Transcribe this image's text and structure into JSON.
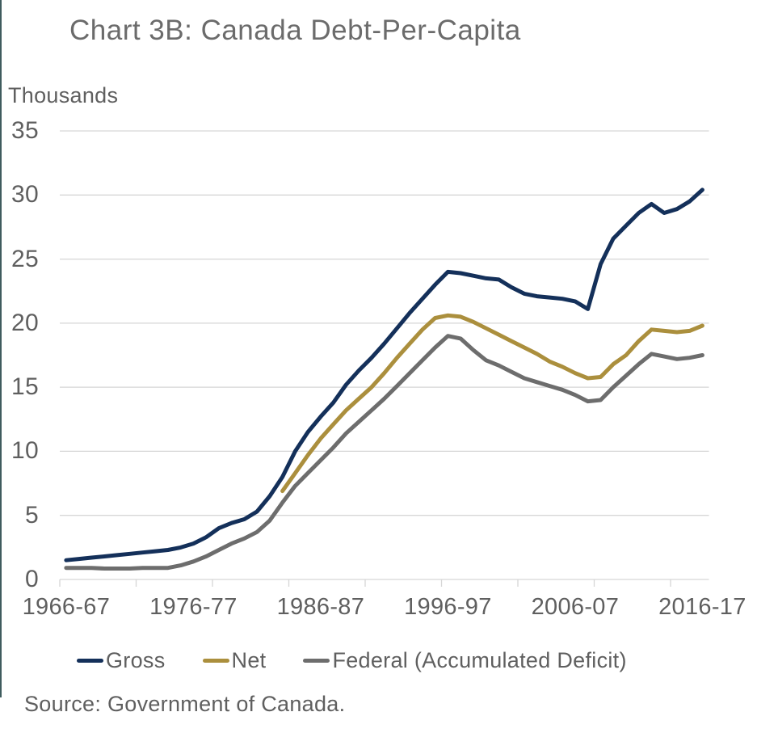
{
  "title": "Chart 3B: Canada Debt-Per-Capita",
  "y_axis": {
    "units_label": "Thousands",
    "ticks": [
      "35",
      "30",
      "25",
      "20",
      "15",
      "10",
      "5",
      "0"
    ]
  },
  "x_axis": {
    "labels": [
      "1966-67",
      "1976-77",
      "1986-87",
      "1996-97",
      "2006-07",
      "2016-17"
    ]
  },
  "legend": [
    {
      "label": "Gross",
      "color": "#14305a"
    },
    {
      "label": "Net",
      "color": "#ab8f3d"
    },
    {
      "label": "Federal (Accumulated Deficit)",
      "color": "#6d6d6d"
    }
  ],
  "source": "Source: Government of Canada.",
  "colors": {
    "gross_line": "#14305a",
    "net_line": "#ab8f3d",
    "federal_line": "#6d6d6d",
    "gridline": "#d6d6d6",
    "text": "#5f5f5f",
    "accent_border": "#3f5c5e"
  },
  "chart_data": {
    "type": "line",
    "title": "Chart 3B: Canada Debt-Per-Capita",
    "xlabel": "",
    "ylabel": "Thousands",
    "ylim": [
      0,
      35
    ],
    "y_tick_step": 5,
    "grid": true,
    "legend_position": "bottom",
    "x_start_year": 1966,
    "x_end_year": 2016,
    "x_tick_labels": [
      "1966-67",
      "1976-77",
      "1986-87",
      "1996-97",
      "2006-07",
      "2016-17"
    ],
    "x_label_every_years": 10,
    "x_tickmark_every_years": 6,
    "units": "thousands of dollars per capita",
    "series": [
      {
        "name": "Gross",
        "color": "#14305a",
        "start_year": 1966,
        "values": [
          1.5,
          1.6,
          1.7,
          1.8,
          1.9,
          2.0,
          2.1,
          2.2,
          2.3,
          2.5,
          2.8,
          3.3,
          4.0,
          4.4,
          4.7,
          5.3,
          6.5,
          8.0,
          10.0,
          11.5,
          12.7,
          13.8,
          15.2,
          16.3,
          17.3,
          18.4,
          19.6,
          20.8,
          21.9,
          23.0,
          24.0,
          23.9,
          23.7,
          23.5,
          23.4,
          22.8,
          22.3,
          22.1,
          22.0,
          21.9,
          21.7,
          21.1,
          24.6,
          26.6,
          27.6,
          28.6,
          29.3,
          28.6,
          28.9,
          29.5,
          30.4
        ]
      },
      {
        "name": "Net",
        "color": "#ab8f3d",
        "start_year": 1983,
        "values": [
          6.9,
          8.3,
          9.7,
          11.0,
          12.1,
          13.2,
          14.1,
          15.0,
          16.1,
          17.3,
          18.4,
          19.5,
          20.4,
          20.6,
          20.5,
          20.1,
          19.6,
          19.1,
          18.6,
          18.1,
          17.6,
          17.0,
          16.6,
          16.1,
          15.7,
          15.8,
          16.8,
          17.5,
          18.6,
          19.5,
          19.4,
          19.3,
          19.4,
          19.8
        ]
      },
      {
        "name": "Federal (Accumulated Deficit)",
        "color": "#6d6d6d",
        "start_year": 1966,
        "values": [
          0.9,
          0.9,
          0.9,
          0.85,
          0.85,
          0.85,
          0.9,
          0.9,
          0.9,
          1.1,
          1.4,
          1.8,
          2.3,
          2.8,
          3.2,
          3.7,
          4.6,
          6.0,
          7.3,
          8.3,
          9.3,
          10.3,
          11.4,
          12.3,
          13.2,
          14.1,
          15.1,
          16.1,
          17.1,
          18.1,
          19.0,
          18.8,
          17.9,
          17.1,
          16.7,
          16.2,
          15.7,
          15.4,
          15.1,
          14.8,
          14.4,
          13.9,
          14.0,
          15.0,
          15.9,
          16.8,
          17.6,
          17.4,
          17.2,
          17.3,
          17.5
        ]
      }
    ],
    "source": "Source: Government of Canada."
  }
}
